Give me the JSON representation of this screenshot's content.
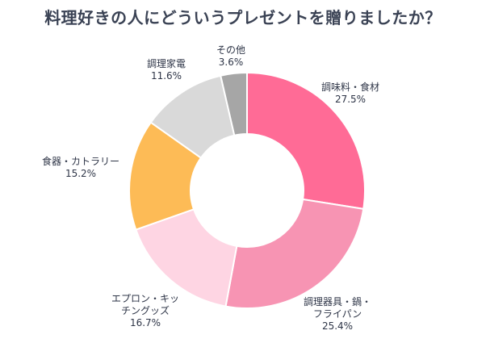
{
  "chart_data": {
    "type": "pie",
    "title": "料理好きの人にどういうプレゼントを贈りましたか？",
    "slices": [
      {
        "name_lines": [
          "調味料・食材"
        ],
        "value": 27.5,
        "pct_label": "27.5%",
        "color": "#ff6b96"
      },
      {
        "name_lines": [
          "調理器具・鍋・",
          "フライパン"
        ],
        "value": 25.4,
        "pct_label": "25.4%",
        "color": "#f794b3"
      },
      {
        "name_lines": [
          "エプロン・キッ",
          "チングッズ"
        ],
        "value": 16.7,
        "pct_label": "16.7%",
        "color": "#fed5e3"
      },
      {
        "name_lines": [
          "食器・カトラリー"
        ],
        "value": 15.2,
        "pct_label": "15.2%",
        "color": "#fdbb56"
      },
      {
        "name_lines": [
          "調理家電"
        ],
        "value": 11.6,
        "pct_label": "11.6%",
        "color": "#d9d9d9"
      },
      {
        "name_lines": [
          "その他"
        ],
        "value": 3.6,
        "pct_label": "3.6%",
        "color": "#a6a6a6"
      }
    ]
  }
}
